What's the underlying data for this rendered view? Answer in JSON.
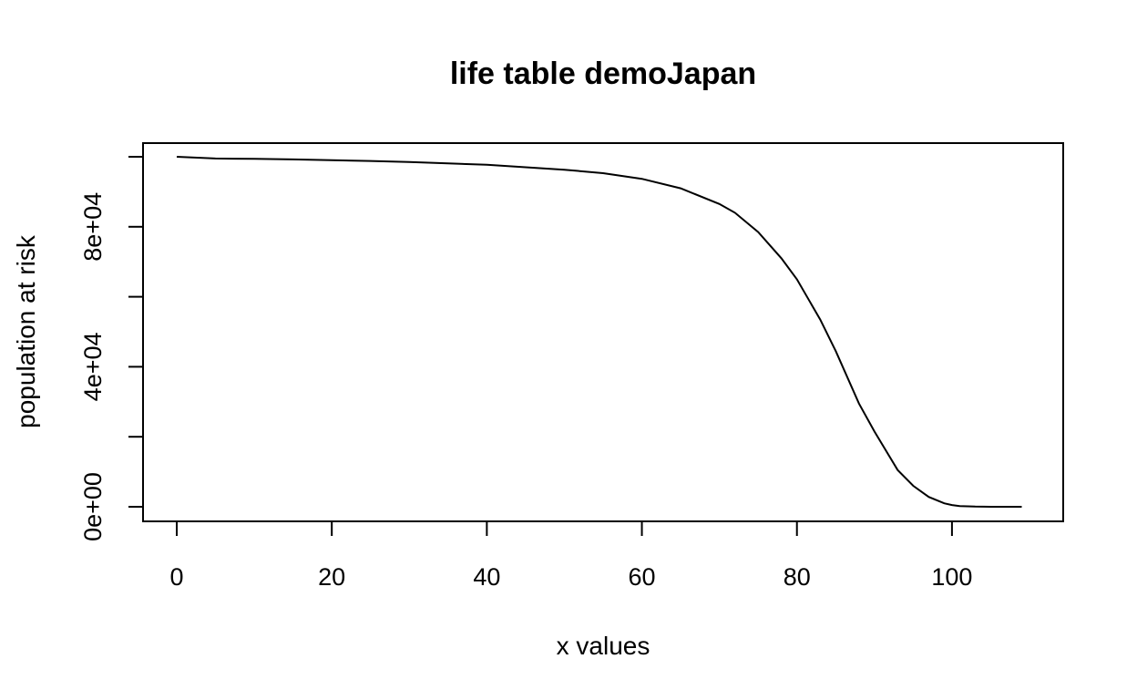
{
  "chart_data": {
    "type": "line",
    "title": "life table demoJapan",
    "xlabel": "x values",
    "ylabel": "population at risk",
    "xlim": [
      0,
      110
    ],
    "ylim": [
      0,
      100000
    ],
    "xticks": [
      0,
      20,
      40,
      60,
      80,
      100
    ],
    "xtick_labels": [
      "0",
      "20",
      "40",
      "60",
      "80",
      "100"
    ],
    "yticks": [
      0,
      20000,
      40000,
      60000,
      80000,
      100000
    ],
    "ytick_labels": [
      "0e+00",
      "",
      "4e+04",
      "",
      "8e+04",
      ""
    ],
    "grid": false,
    "legend": "none",
    "series": [
      {
        "color": "#000000",
        "x": [
          0,
          5,
          10,
          15,
          20,
          25,
          30,
          35,
          40,
          45,
          50,
          55,
          60,
          65,
          70,
          72,
          75,
          78,
          80,
          83,
          85,
          88,
          90,
          93,
          95,
          97,
          99,
          100,
          101,
          103,
          105,
          107,
          109
        ],
        "y": [
          100000,
          99500,
          99400,
          99250,
          99000,
          98800,
          98500,
          98100,
          97700,
          97000,
          96300,
          95300,
          93700,
          91000,
          86500,
          84000,
          78500,
          71000,
          65000,
          53500,
          44500,
          29500,
          21500,
          10500,
          6000,
          2800,
          1000,
          500,
          200,
          50,
          10,
          2,
          0
        ]
      }
    ]
  }
}
